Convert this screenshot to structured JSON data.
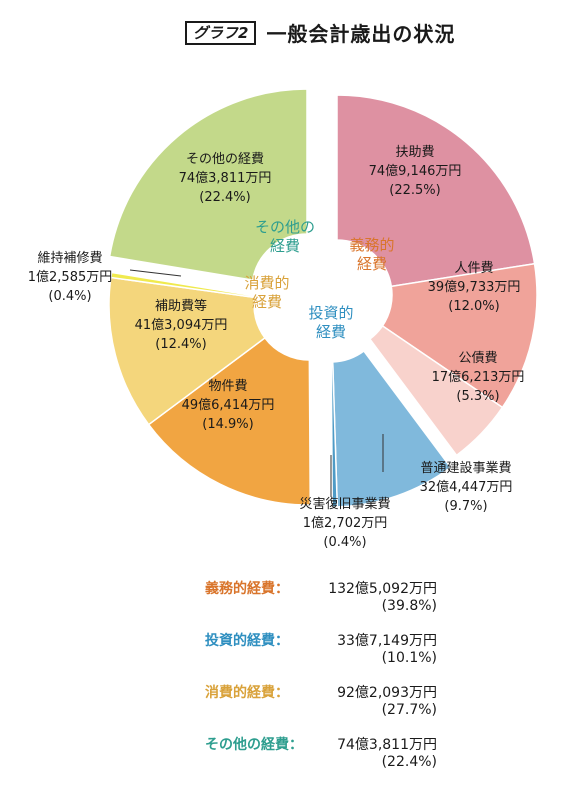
{
  "title": {
    "badge": "グラフ2",
    "text": "一般会計歳出の状況"
  },
  "chart_data": {
    "type": "pie",
    "title": "一般会計歳出の状況",
    "slices": [
      {
        "name": "扶助費",
        "amount": "74億9,146万円",
        "pct_label": "(22.5%)",
        "value": 22.5,
        "group": "義務的経費",
        "color": "#de91a2"
      },
      {
        "name": "人件費",
        "amount": "39億9,733万円",
        "pct_label": "(12.0%)",
        "value": 12.0,
        "group": "義務的経費",
        "color": "#f0a39a"
      },
      {
        "name": "公債費",
        "amount": "17億6,213万円",
        "pct_label": "(5.3%)",
        "value": 5.3,
        "group": "義務的経費",
        "color": "#f8d2cc"
      },
      {
        "name": "普通建設事業費",
        "amount": "32億4,447万円",
        "pct_label": "(9.7%)",
        "value": 9.7,
        "group": "投資的経費",
        "color": "#80b9dc"
      },
      {
        "name": "災害復旧事業費",
        "amount": "1億2,702万円",
        "pct_label": "(0.4%)",
        "value": 0.4,
        "group": "投資的経費",
        "color": "#4f9bc6"
      },
      {
        "name": "物件費",
        "amount": "49億6,414万円",
        "pct_label": "(14.9%)",
        "value": 14.9,
        "group": "消費的経費",
        "color": "#f1a542"
      },
      {
        "name": "補助費等",
        "amount": "41億3,094万円",
        "pct_label": "(12.4%)",
        "value": 12.4,
        "group": "消費的経費",
        "color": "#f4d67c"
      },
      {
        "name": "維持補修費",
        "amount": "1億2,585万円",
        "pct_label": "(0.4%)",
        "value": 0.4,
        "group": "消費的経費",
        "color": "#f0ea4e"
      },
      {
        "name": "その他の経費",
        "amount": "74億3,811万円",
        "pct_label": "(22.4%)",
        "value": 22.4,
        "group": "その他の経費",
        "color": "#c3d98a"
      }
    ],
    "groups": [
      {
        "line1": "義務的",
        "line2": "経費",
        "color": "#d9752c"
      },
      {
        "line1": "投資的",
        "line2": "経費",
        "color": "#2f8fc0"
      },
      {
        "line1": "消費的",
        "line2": "経費",
        "color": "#d9a23a"
      },
      {
        "line1": "その他の",
        "line2": "経費",
        "color": "#2e9e8f"
      }
    ]
  },
  "summary": [
    {
      "name": "義務的経費",
      "sep": "：",
      "amount": "132億5,092万円",
      "pct": "(39.8%)",
      "color": "#d9752c"
    },
    {
      "name": "投資的経費",
      "sep": "：",
      "amount": "33億7,149万円",
      "pct": "(10.1%)",
      "color": "#2f8fc0"
    },
    {
      "name": "消費的経費",
      "sep": "：",
      "amount": "92億2,093万円",
      "pct": "(27.7%)",
      "color": "#d9a23a"
    },
    {
      "name": "その他の経費",
      "sep": "：",
      "amount": "74億3,811万円",
      "pct": "(22.4%)",
      "color": "#2e9e8f"
    }
  ]
}
